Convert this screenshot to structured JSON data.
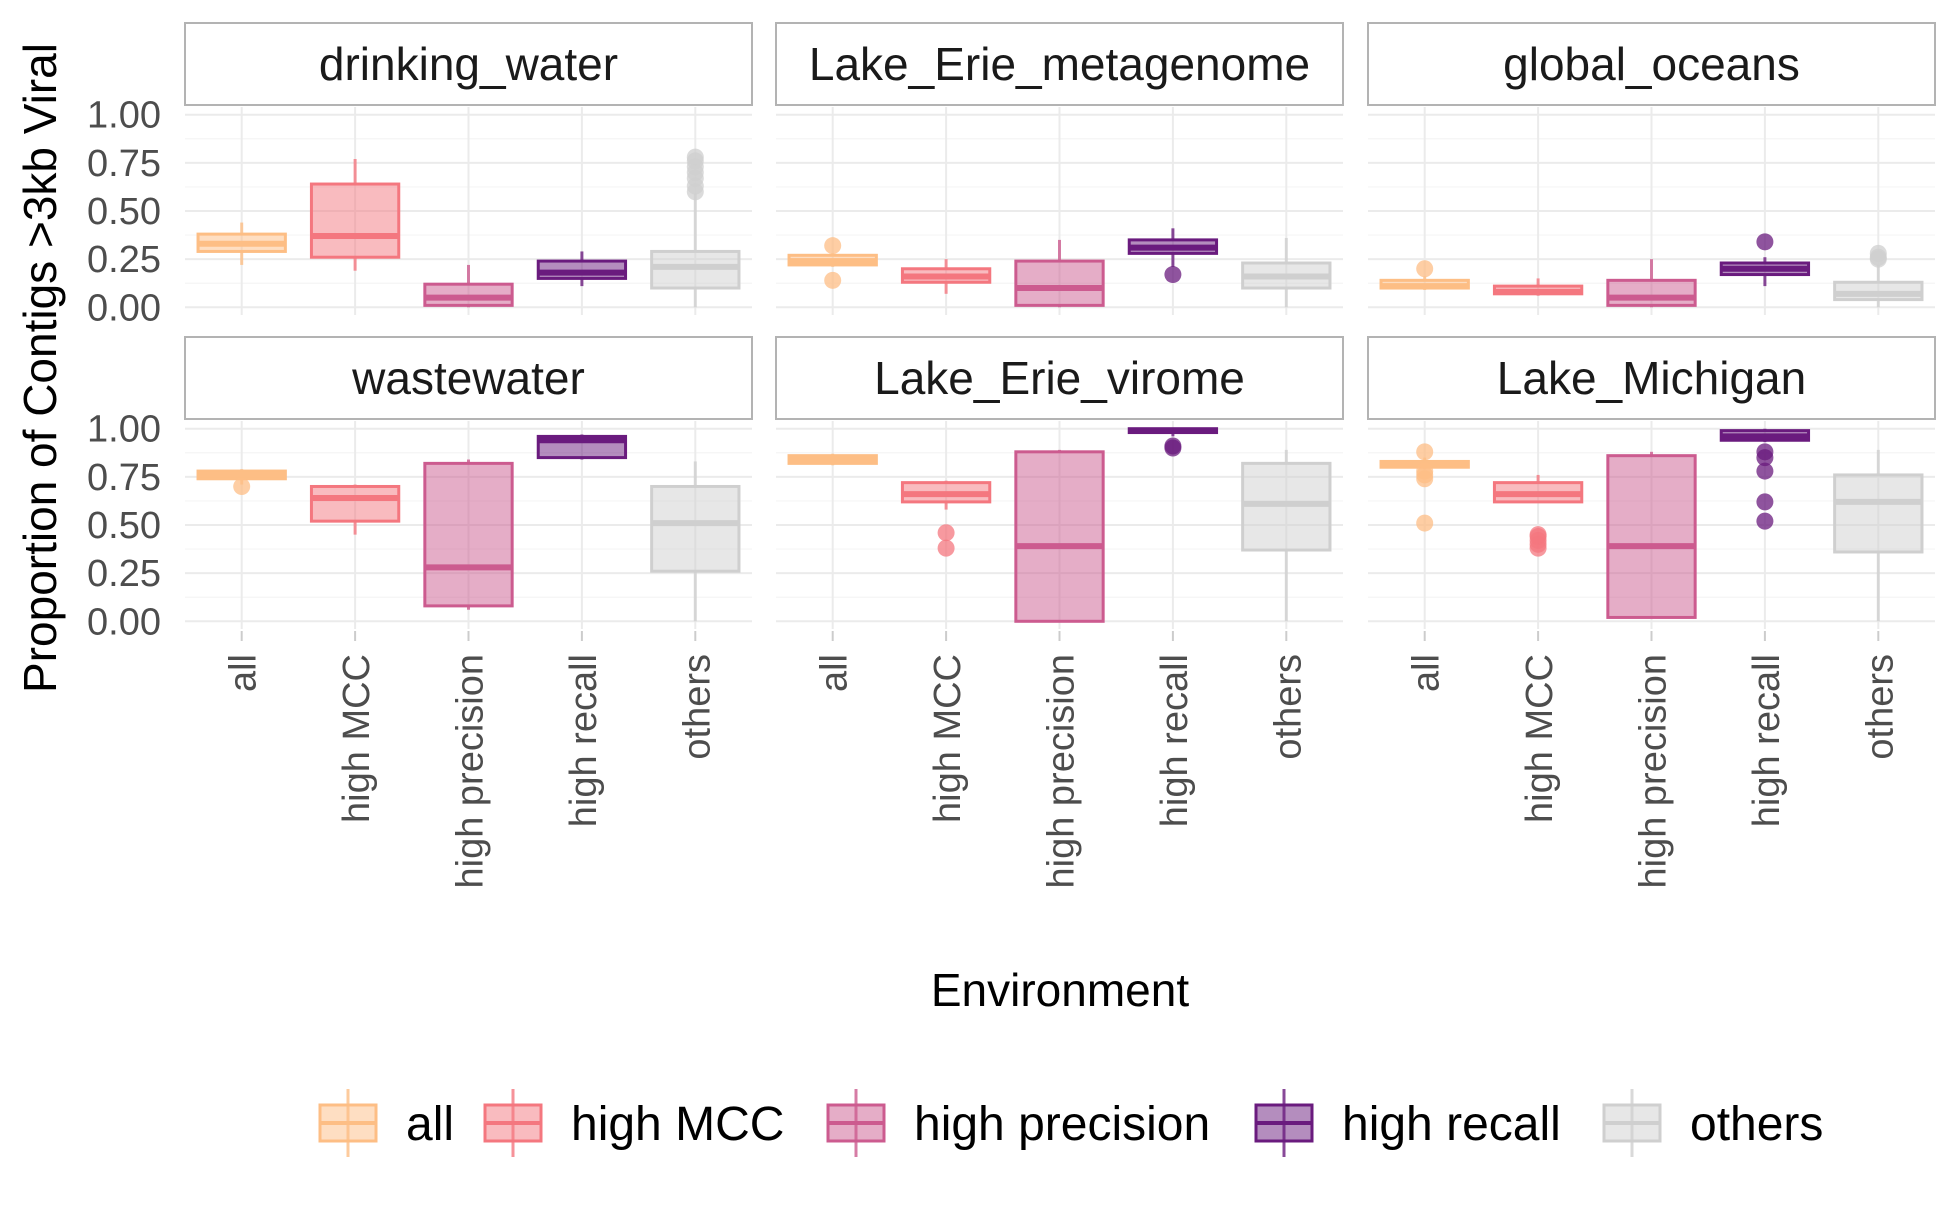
{
  "chart_data": {
    "type": "boxplot",
    "ylabel": "Proportion of Contigs >3kb Viral",
    "xlabel": "Environment",
    "categories": [
      "all",
      "high MCC",
      "high precision",
      "high recall",
      "others"
    ],
    "y_ticks": [
      "0.00",
      "0.25",
      "0.50",
      "0.75",
      "1.00"
    ],
    "ylim": [
      -0.04,
      1.04
    ],
    "grid": true,
    "legend_position": "bottom",
    "colors": {
      "all": "#FDBE85",
      "high MCC": "#F4777F",
      "high precision": "#CC5B8F",
      "high recall": "#6A1B7E",
      "others": "#CFCFCF"
    },
    "panels": [
      {
        "title": "drinking_water",
        "boxes": [
          {
            "category": "all",
            "min": 0.22,
            "q1": 0.29,
            "median": 0.33,
            "q3": 0.38,
            "max": 0.44,
            "outliers": []
          },
          {
            "category": "high MCC",
            "min": 0.19,
            "q1": 0.26,
            "median": 0.37,
            "q3": 0.64,
            "max": 0.77,
            "outliers": []
          },
          {
            "category": "high precision",
            "min": 0.0,
            "q1": 0.01,
            "median": 0.05,
            "q3": 0.12,
            "max": 0.22,
            "outliers": []
          },
          {
            "category": "high recall",
            "min": 0.11,
            "q1": 0.15,
            "median": 0.18,
            "q3": 0.24,
            "max": 0.29,
            "outliers": []
          },
          {
            "category": "others",
            "min": 0.0,
            "q1": 0.1,
            "median": 0.21,
            "q3": 0.29,
            "max": 0.59,
            "outliers": [
              0.6,
              0.63,
              0.67,
              0.7,
              0.73,
              0.76,
              0.78
            ]
          }
        ]
      },
      {
        "title": "Lake_Erie_metagenome",
        "boxes": [
          {
            "category": "all",
            "min": 0.21,
            "q1": 0.22,
            "median": 0.24,
            "q3": 0.27,
            "max": 0.28,
            "outliers": [
              0.14,
              0.32
            ]
          },
          {
            "category": "high MCC",
            "min": 0.07,
            "q1": 0.13,
            "median": 0.16,
            "q3": 0.2,
            "max": 0.25,
            "outliers": []
          },
          {
            "category": "high precision",
            "min": 0.0,
            "q1": 0.01,
            "median": 0.1,
            "q3": 0.24,
            "max": 0.35,
            "outliers": []
          },
          {
            "category": "high recall",
            "min": 0.21,
            "q1": 0.28,
            "median": 0.31,
            "q3": 0.35,
            "max": 0.41,
            "outliers": [
              0.17
            ]
          },
          {
            "category": "others",
            "min": 0.0,
            "q1": 0.1,
            "median": 0.16,
            "q3": 0.23,
            "max": 0.36,
            "outliers": []
          }
        ]
      },
      {
        "title": "global_oceans",
        "boxes": [
          {
            "category": "all",
            "min": 0.09,
            "q1": 0.1,
            "median": 0.11,
            "q3": 0.14,
            "max": 0.16,
            "outliers": [
              0.2
            ]
          },
          {
            "category": "high MCC",
            "min": 0.06,
            "q1": 0.07,
            "median": 0.08,
            "q3": 0.11,
            "max": 0.15,
            "outliers": []
          },
          {
            "category": "high precision",
            "min": 0.0,
            "q1": 0.01,
            "median": 0.05,
            "q3": 0.14,
            "max": 0.25,
            "outliers": []
          },
          {
            "category": "high recall",
            "min": 0.11,
            "q1": 0.17,
            "median": 0.2,
            "q3": 0.23,
            "max": 0.26,
            "outliers": [
              0.34
            ]
          },
          {
            "category": "others",
            "min": 0.0,
            "q1": 0.04,
            "median": 0.07,
            "q3": 0.13,
            "max": 0.22,
            "outliers": [
              0.25,
              0.26,
              0.28
            ]
          }
        ]
      },
      {
        "title": "wastewater",
        "boxes": [
          {
            "category": "all",
            "min": 0.71,
            "q1": 0.74,
            "median": 0.76,
            "q3": 0.78,
            "max": 0.79,
            "outliers": [
              0.7
            ]
          },
          {
            "category": "high MCC",
            "min": 0.45,
            "q1": 0.52,
            "median": 0.64,
            "q3": 0.7,
            "max": 0.71,
            "outliers": []
          },
          {
            "category": "high precision",
            "min": 0.06,
            "q1": 0.08,
            "median": 0.28,
            "q3": 0.82,
            "max": 0.84,
            "outliers": []
          },
          {
            "category": "high recall",
            "min": 0.84,
            "q1": 0.85,
            "median": 0.94,
            "q3": 0.96,
            "max": 0.97,
            "outliers": []
          },
          {
            "category": "others",
            "min": 0.0,
            "q1": 0.26,
            "median": 0.51,
            "q3": 0.7,
            "max": 0.83,
            "outliers": []
          }
        ]
      },
      {
        "title": "Lake_Erie_virome",
        "boxes": [
          {
            "category": "all",
            "min": 0.81,
            "q1": 0.82,
            "median": 0.84,
            "q3": 0.86,
            "max": 0.87,
            "outliers": []
          },
          {
            "category": "high MCC",
            "min": 0.58,
            "q1": 0.62,
            "median": 0.66,
            "q3": 0.72,
            "max": 0.73,
            "outliers": [
              0.38,
              0.46
            ]
          },
          {
            "category": "high precision",
            "min": 0.0,
            "q1": 0.0,
            "median": 0.39,
            "q3": 0.88,
            "max": 0.89,
            "outliers": []
          },
          {
            "category": "high recall",
            "min": 0.96,
            "q1": 0.98,
            "median": 0.99,
            "q3": 1.0,
            "max": 1.0,
            "outliers": [
              0.91,
              0.9
            ]
          },
          {
            "category": "others",
            "min": 0.0,
            "q1": 0.37,
            "median": 0.61,
            "q3": 0.82,
            "max": 0.89,
            "outliers": []
          }
        ]
      },
      {
        "title": "Lake_Michigan",
        "boxes": [
          {
            "category": "all",
            "min": 0.79,
            "q1": 0.8,
            "median": 0.82,
            "q3": 0.83,
            "max": 0.85,
            "outliers": [
              0.51,
              0.74,
              0.76,
              0.78,
              0.88
            ]
          },
          {
            "category": "high MCC",
            "min": 0.62,
            "q1": 0.62,
            "median": 0.66,
            "q3": 0.72,
            "max": 0.76,
            "outliers": [
              0.38,
              0.4,
              0.42,
              0.44,
              0.45
            ]
          },
          {
            "category": "high precision",
            "min": 0.02,
            "q1": 0.02,
            "median": 0.39,
            "q3": 0.86,
            "max": 0.88,
            "outliers": []
          },
          {
            "category": "high recall",
            "min": 0.93,
            "q1": 0.94,
            "median": 0.96,
            "q3": 0.99,
            "max": 1.0,
            "outliers": [
              0.52,
              0.62,
              0.78,
              0.85,
              0.88
            ]
          },
          {
            "category": "others",
            "min": 0.0,
            "q1": 0.36,
            "median": 0.62,
            "q3": 0.76,
            "max": 0.89,
            "outliers": []
          }
        ]
      }
    ],
    "legend": [
      "all",
      "high MCC",
      "high precision",
      "high recall",
      "others"
    ]
  }
}
